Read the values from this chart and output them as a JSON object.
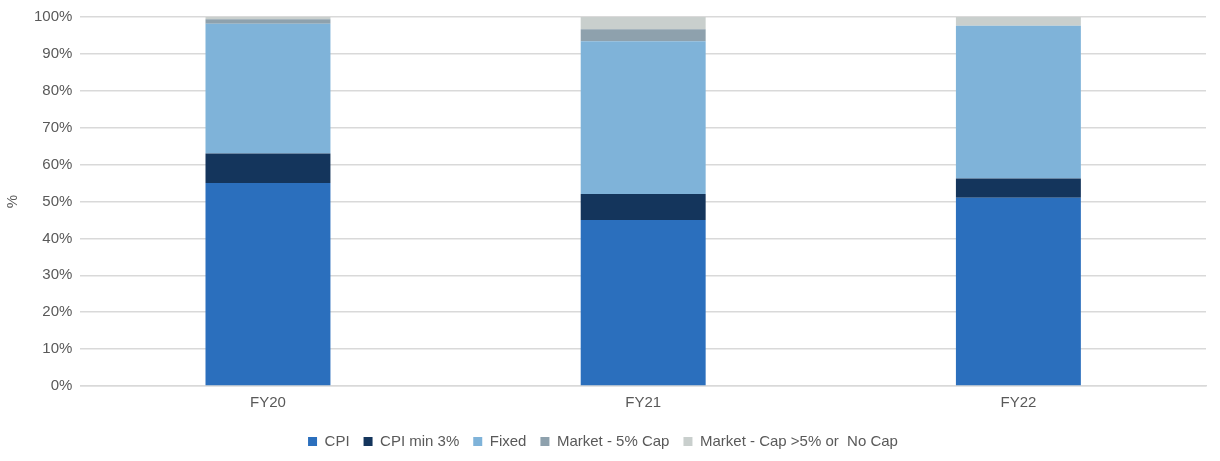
{
  "chart_data": {
    "type": "bar",
    "stacked": true,
    "ylabel": "%",
    "categories": [
      "FY20",
      "FY21",
      "FY22"
    ],
    "series": [
      {
        "name": "CPI",
        "color": "#2b6fbd",
        "values": [
          55,
          45,
          51
        ]
      },
      {
        "name": "CPI min 3%",
        "color": "#14355c",
        "values": [
          8,
          7,
          5.2
        ]
      },
      {
        "name": "Fixed",
        "color": "#7fb3d9",
        "values": [
          35.2,
          41.4,
          41.4
        ]
      },
      {
        "name": "Market - 5% Cap",
        "color": "#8ea1ad",
        "values": [
          1.2,
          3.3,
          0
        ]
      },
      {
        "name": "Market - Cap >5% or  No Cap",
        "color": "#c9cfcd",
        "values": [
          0.6,
          3.3,
          2.4
        ]
      }
    ],
    "ylim": [
      0,
      100
    ],
    "yticks": [
      {
        "value": 0,
        "label": "0%"
      },
      {
        "value": 10,
        "label": "10%"
      },
      {
        "value": 20,
        "label": "20%"
      },
      {
        "value": 30,
        "label": "30%"
      },
      {
        "value": 40,
        "label": "40%"
      },
      {
        "value": 50,
        "label": "50%"
      },
      {
        "value": 60,
        "label": "60%"
      },
      {
        "value": 70,
        "label": "70%"
      },
      {
        "value": 80,
        "label": "80%"
      },
      {
        "value": 90,
        "label": "90%"
      },
      {
        "value": 100,
        "label": "100%"
      }
    ],
    "grid": "y",
    "legend": "bottom"
  }
}
